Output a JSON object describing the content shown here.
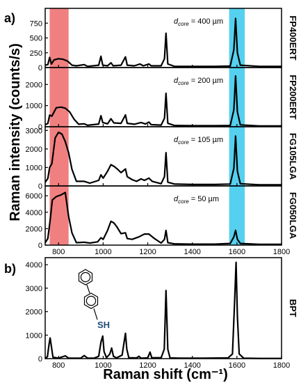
{
  "panel_a": {
    "label": "a)",
    "ylabel": "Raman intensity (counts/s)"
  },
  "panel_b": {
    "label": "b)",
    "sh_label": "SH"
  },
  "xaxis": {
    "label": "Raman shift (cm⁻¹)",
    "ticks": [
      "800",
      "1000",
      "1200",
      "1400",
      "1600",
      "1800"
    ]
  },
  "highlights": {
    "red_color": "#f08080",
    "blue_color": "#55d0ee",
    "red_range": [
      760,
      845
    ],
    "blue_range": [
      1565,
      1635
    ]
  },
  "chart_data": [
    {
      "type": "line",
      "name": "FP400ERT",
      "annotation_d": "d",
      "annotation_sub": "core",
      "annotation_rest": " = 400 µm",
      "xlim": [
        740,
        1800
      ],
      "ylim": [
        0,
        1000
      ],
      "yticks": [
        "0",
        "250",
        "500",
        "750"
      ],
      "ytick_values": [
        0,
        250,
        500,
        750
      ],
      "points": [
        [
          740,
          40
        ],
        [
          752,
          50
        ],
        [
          760,
          170
        ],
        [
          768,
          60
        ],
        [
          780,
          130
        ],
        [
          800,
          150
        ],
        [
          820,
          140
        ],
        [
          840,
          110
        ],
        [
          860,
          40
        ],
        [
          880,
          30
        ],
        [
          915,
          50
        ],
        [
          930,
          20
        ],
        [
          980,
          40
        ],
        [
          990,
          190
        ],
        [
          998,
          40
        ],
        [
          1020,
          30
        ],
        [
          1035,
          80
        ],
        [
          1045,
          30
        ],
        [
          1080,
          40
        ],
        [
          1100,
          180
        ],
        [
          1108,
          40
        ],
        [
          1140,
          30
        ],
        [
          1165,
          60
        ],
        [
          1180,
          30
        ],
        [
          1205,
          60
        ],
        [
          1215,
          30
        ],
        [
          1260,
          30
        ],
        [
          1275,
          150
        ],
        [
          1282,
          580
        ],
        [
          1290,
          60
        ],
        [
          1320,
          20
        ],
        [
          1400,
          20
        ],
        [
          1500,
          20
        ],
        [
          1570,
          25
        ],
        [
          1586,
          300
        ],
        [
          1594,
          830
        ],
        [
          1602,
          250
        ],
        [
          1615,
          40
        ],
        [
          1700,
          20
        ],
        [
          1800,
          20
        ]
      ]
    },
    {
      "type": "line",
      "name": "FP200ERT",
      "annotation_d": "d",
      "annotation_sub": "core",
      "annotation_rest": " = 200 µm",
      "xlim": [
        740,
        1800
      ],
      "ylim": [
        0,
        2800
      ],
      "yticks": [
        "0",
        "1000",
        "2000"
      ],
      "ytick_values": [
        0,
        1000,
        2000
      ],
      "points": [
        [
          740,
          100
        ],
        [
          752,
          150
        ],
        [
          760,
          550
        ],
        [
          770,
          500
        ],
        [
          790,
          900
        ],
        [
          810,
          930
        ],
        [
          830,
          880
        ],
        [
          850,
          700
        ],
        [
          870,
          350
        ],
        [
          890,
          120
        ],
        [
          915,
          140
        ],
        [
          930,
          70
        ],
        [
          980,
          130
        ],
        [
          990,
          520
        ],
        [
          998,
          200
        ],
        [
          1020,
          140
        ],
        [
          1035,
          380
        ],
        [
          1048,
          180
        ],
        [
          1080,
          160
        ],
        [
          1100,
          560
        ],
        [
          1108,
          160
        ],
        [
          1140,
          120
        ],
        [
          1170,
          200
        ],
        [
          1190,
          130
        ],
        [
          1205,
          220
        ],
        [
          1215,
          100
        ],
        [
          1260,
          80
        ],
        [
          1275,
          400
        ],
        [
          1282,
          1580
        ],
        [
          1290,
          160
        ],
        [
          1320,
          60
        ],
        [
          1400,
          50
        ],
        [
          1500,
          50
        ],
        [
          1570,
          60
        ],
        [
          1586,
          800
        ],
        [
          1594,
          2400
        ],
        [
          1602,
          700
        ],
        [
          1615,
          90
        ],
        [
          1700,
          40
        ],
        [
          1800,
          40
        ]
      ]
    },
    {
      "type": "line",
      "name": "FG105LGA",
      "annotation_d": "d",
      "annotation_sub": "core",
      "annotation_rest": " = 105 µm",
      "xlim": [
        740,
        1800
      ],
      "ylim": [
        0,
        3200
      ],
      "yticks": [
        "0",
        "1000",
        "2000",
        "3000"
      ],
      "ytick_values": [
        0,
        1000,
        2000,
        3000
      ],
      "points": [
        [
          740,
          200
        ],
        [
          752,
          400
        ],
        [
          760,
          1000
        ],
        [
          770,
          1200
        ],
        [
          785,
          2600
        ],
        [
          800,
          2900
        ],
        [
          815,
          2800
        ],
        [
          830,
          2400
        ],
        [
          845,
          1800
        ],
        [
          860,
          900
        ],
        [
          880,
          250
        ],
        [
          915,
          250
        ],
        [
          940,
          150
        ],
        [
          980,
          300
        ],
        [
          990,
          600
        ],
        [
          1000,
          420
        ],
        [
          1020,
          800
        ],
        [
          1035,
          1150
        ],
        [
          1050,
          1050
        ],
        [
          1065,
          900
        ],
        [
          1080,
          720
        ],
        [
          1100,
          920
        ],
        [
          1108,
          500
        ],
        [
          1130,
          340
        ],
        [
          1150,
          250
        ],
        [
          1170,
          380
        ],
        [
          1185,
          300
        ],
        [
          1205,
          420
        ],
        [
          1220,
          250
        ],
        [
          1260,
          120
        ],
        [
          1275,
          500
        ],
        [
          1282,
          1800
        ],
        [
          1290,
          200
        ],
        [
          1320,
          100
        ],
        [
          1400,
          80
        ],
        [
          1500,
          80
        ],
        [
          1570,
          100
        ],
        [
          1586,
          950
        ],
        [
          1594,
          2700
        ],
        [
          1602,
          800
        ],
        [
          1615,
          120
        ],
        [
          1700,
          60
        ],
        [
          1800,
          60
        ]
      ]
    },
    {
      "type": "line",
      "name": "FG050LGA",
      "annotation_d": "d",
      "annotation_sub": "core",
      "annotation_rest": " = 50 µm",
      "xlim": [
        740,
        1800
      ],
      "ylim": [
        0,
        7200
      ],
      "yticks": [
        "0",
        "2000",
        "4000",
        "6000"
      ],
      "ytick_values": [
        0,
        2000,
        4000,
        6000
      ],
      "points": [
        [
          740,
          300
        ],
        [
          752,
          800
        ],
        [
          762,
          3000
        ],
        [
          772,
          5500
        ],
        [
          790,
          5900
        ],
        [
          810,
          6100
        ],
        [
          830,
          6400
        ],
        [
          845,
          3500
        ],
        [
          860,
          1500
        ],
        [
          880,
          300
        ],
        [
          915,
          350
        ],
        [
          940,
          250
        ],
        [
          975,
          400
        ],
        [
          990,
          900
        ],
        [
          1000,
          700
        ],
        [
          1020,
          1800
        ],
        [
          1035,
          2900
        ],
        [
          1048,
          2700
        ],
        [
          1062,
          2200
        ],
        [
          1080,
          1400
        ],
        [
          1100,
          1500
        ],
        [
          1108,
          800
        ],
        [
          1130,
          700
        ],
        [
          1160,
          1000
        ],
        [
          1185,
          1350
        ],
        [
          1205,
          1350
        ],
        [
          1230,
          800
        ],
        [
          1260,
          250
        ],
        [
          1275,
          700
        ],
        [
          1282,
          1800
        ],
        [
          1290,
          300
        ],
        [
          1320,
          150
        ],
        [
          1400,
          120
        ],
        [
          1500,
          120
        ],
        [
          1570,
          200
        ],
        [
          1586,
          1000
        ],
        [
          1594,
          1800
        ],
        [
          1602,
          700
        ],
        [
          1615,
          200
        ],
        [
          1700,
          100
        ],
        [
          1800,
          100
        ]
      ]
    },
    {
      "type": "line",
      "name": "BPT",
      "xlim": [
        740,
        1800
      ],
      "ylim": [
        0,
        4300
      ],
      "yticks": [
        "0",
        "1000",
        "2000",
        "3000",
        "4000"
      ],
      "ytick_values": [
        0,
        1000,
        2000,
        3000,
        4000
      ],
      "points": [
        [
          740,
          20
        ],
        [
          750,
          80
        ],
        [
          757,
          600
        ],
        [
          762,
          880
        ],
        [
          768,
          500
        ],
        [
          775,
          60
        ],
        [
          800,
          20
        ],
        [
          830,
          120
        ],
        [
          845,
          20
        ],
        [
          900,
          20
        ],
        [
          915,
          130
        ],
        [
          930,
          20
        ],
        [
          960,
          20
        ],
        [
          980,
          100
        ],
        [
          990,
          700
        ],
        [
          998,
          960
        ],
        [
          1004,
          300
        ],
        [
          1015,
          40
        ],
        [
          1030,
          200
        ],
        [
          1038,
          450
        ],
        [
          1046,
          100
        ],
        [
          1060,
          30
        ],
        [
          1085,
          150
        ],
        [
          1094,
          700
        ],
        [
          1100,
          1080
        ],
        [
          1106,
          400
        ],
        [
          1115,
          40
        ],
        [
          1150,
          30
        ],
        [
          1160,
          100
        ],
        [
          1170,
          20
        ],
        [
          1200,
          30
        ],
        [
          1210,
          280
        ],
        [
          1218,
          40
        ],
        [
          1260,
          40
        ],
        [
          1274,
          400
        ],
        [
          1282,
          2900
        ],
        [
          1290,
          400
        ],
        [
          1300,
          30
        ],
        [
          1350,
          20
        ],
        [
          1450,
          20
        ],
        [
          1560,
          30
        ],
        [
          1580,
          200
        ],
        [
          1590,
          2500
        ],
        [
          1596,
          4100
        ],
        [
          1602,
          1800
        ],
        [
          1610,
          200
        ],
        [
          1630,
          20
        ],
        [
          1700,
          10
        ],
        [
          1800,
          10
        ]
      ]
    }
  ]
}
